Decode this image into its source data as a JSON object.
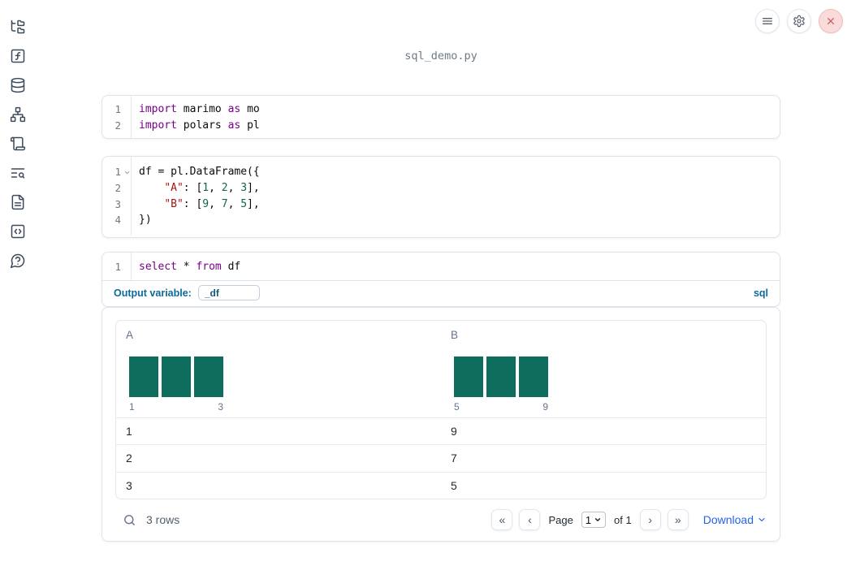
{
  "colors": {
    "keyword": "#770088",
    "string": "#aa1111",
    "number": "#116644",
    "histogram_bar": "#0e6d5c",
    "accent_blue": "#0b6a99",
    "download_blue": "#2563eb",
    "close_red": "#cb5c5c"
  },
  "header": {
    "filename": "sql_demo.py"
  },
  "topbar": {
    "buttons": [
      {
        "icon": "menu-icon"
      },
      {
        "icon": "gear-icon"
      },
      {
        "icon": "close-icon"
      }
    ]
  },
  "sidebar": {
    "items": [
      {
        "icon": "file-tree-icon"
      },
      {
        "icon": "functions-icon"
      },
      {
        "icon": "database-icon"
      },
      {
        "icon": "dependency-graph-icon"
      },
      {
        "icon": "scroll-icon"
      },
      {
        "icon": "outline-search-icon"
      },
      {
        "icon": "document-icon"
      },
      {
        "icon": "snippets-icon"
      },
      {
        "icon": "help-icon"
      }
    ]
  },
  "cells": [
    {
      "type": "python",
      "lines": [
        {
          "n": "1",
          "tokens": [
            [
              "kw",
              "import"
            ],
            [
              "pl",
              " marimo "
            ],
            [
              "kw",
              "as"
            ],
            [
              "pl",
              " mo"
            ]
          ]
        },
        {
          "n": "2",
          "tokens": [
            [
              "kw",
              "import"
            ],
            [
              "pl",
              " polars "
            ],
            [
              "kw",
              "as"
            ],
            [
              "pl",
              " pl"
            ]
          ]
        }
      ]
    },
    {
      "type": "python",
      "lines": [
        {
          "n": "1",
          "fold": true,
          "tokens": [
            [
              "pl",
              "df = pl.DataFrame({"
            ]
          ]
        },
        {
          "n": "2",
          "tokens": [
            [
              "pl",
              "    "
            ],
            [
              "str",
              "\"A\""
            ],
            [
              "pl",
              ": ["
            ],
            [
              "num",
              "1"
            ],
            [
              "pl",
              ", "
            ],
            [
              "num",
              "2"
            ],
            [
              "pl",
              ", "
            ],
            [
              "num",
              "3"
            ],
            [
              "pl",
              "],"
            ]
          ]
        },
        {
          "n": "3",
          "tokens": [
            [
              "pl",
              "    "
            ],
            [
              "str",
              "\"B\""
            ],
            [
              "pl",
              ": ["
            ],
            [
              "num",
              "9"
            ],
            [
              "pl",
              ", "
            ],
            [
              "num",
              "7"
            ],
            [
              "pl",
              ", "
            ],
            [
              "num",
              "5"
            ],
            [
              "pl",
              "],"
            ]
          ]
        },
        {
          "n": "4",
          "tokens": [
            [
              "pl",
              "})"
            ]
          ]
        }
      ]
    },
    {
      "type": "sql",
      "lines": [
        {
          "n": "1",
          "tokens": [
            [
              "kw",
              "select"
            ],
            [
              "pl",
              " * "
            ],
            [
              "kw",
              "from"
            ],
            [
              "pl",
              " df"
            ]
          ]
        }
      ],
      "footer": {
        "output_variable_label": "Output variable:",
        "output_variable_value": "_df",
        "language_badge": "sql"
      }
    }
  ],
  "table": {
    "columns": [
      {
        "name": "A",
        "histogram": {
          "type": "bar",
          "values": [
            1,
            1,
            1
          ],
          "min_label": "1",
          "max_label": "3"
        }
      },
      {
        "name": "B",
        "histogram": {
          "type": "bar",
          "values": [
            1,
            1,
            1
          ],
          "min_label": "5",
          "max_label": "9"
        }
      }
    ],
    "rows": [
      [
        "1",
        "9"
      ],
      [
        "2",
        "7"
      ],
      [
        "3",
        "5"
      ]
    ],
    "footer": {
      "row_count": "3 rows",
      "page_label": "Page",
      "page_value": "1",
      "page_total": "of 1",
      "download_label": "Download",
      "icons": {
        "first_page": "«",
        "prev_page": "‹",
        "next_page": "›",
        "last_page": "»"
      }
    }
  }
}
